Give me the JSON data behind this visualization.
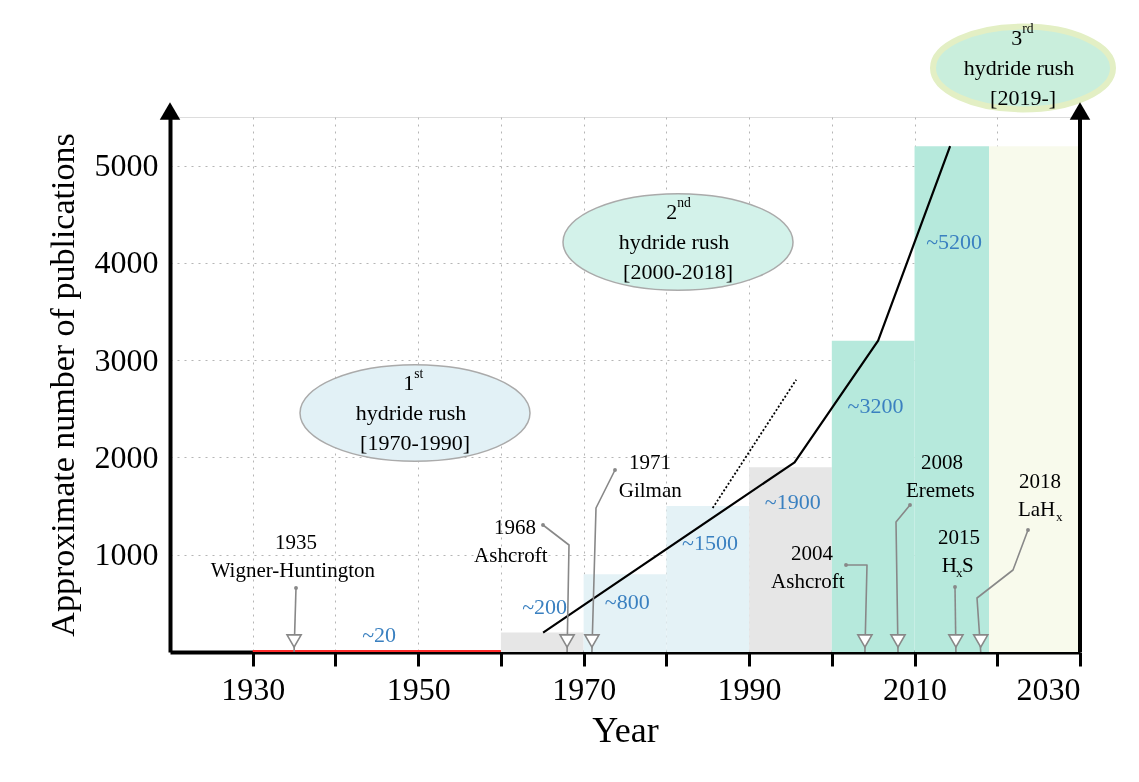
{
  "chart_data": {
    "type": "histogram",
    "xlabel": "Year",
    "ylabel": "Approximate number of publications",
    "bins": [
      1930,
      1960,
      1970,
      1980,
      1990,
      2000,
      2010,
      2019,
      2030
    ],
    "values": [
      20,
      200,
      800,
      1500,
      1900,
      3200,
      5200,
      5200
    ],
    "colors": [
      "#ff2a2a",
      "#e6e6e6",
      "#e4f2f6",
      "#e4f2f6",
      "#e6e6e6",
      "#b6e9dc",
      "#b6e9dc",
      "#f8faec"
    ],
    "value_labels": [
      "~20",
      "~200",
      "~800",
      "~1500",
      "~1900",
      "~3200",
      "~5200",
      null
    ],
    "series": [
      {
        "type": "line",
        "color": "#000000",
        "x": [
          1965.1,
          1995.5,
          2005.6,
          2014.3
        ],
        "values": [
          200,
          1950,
          3200,
          5200
        ]
      },
      {
        "type": "line",
        "color": "#000000",
        "line_style": "dotted",
        "x": [
          1985.6,
          1995.7
        ],
        "values": [
          1480,
          2800
        ]
      }
    ],
    "xlim": [
      1920,
      2030
    ],
    "ylim": [
      0,
      5500
    ],
    "xticks": [
      1930,
      {
        "value": 1940,
        "label": null
      },
      1950,
      {
        "value": 1960,
        "label": null
      },
      1970,
      {
        "value": 1980,
        "label": null
      },
      1990,
      {
        "value": 2000,
        "label": null
      },
      2010,
      {
        "value": 2020,
        "label": null
      },
      2030
    ],
    "yticks": [
      1000,
      2000,
      3000,
      4000,
      5000
    ],
    "grid": true,
    "annotations": [
      "1$^{st}$\nhydride rush\n[1970-1990]",
      "2$^{nd}$\nhydride rush\n[2000-2018]",
      "3$^{rd}$\nhydride rush\n[2019-]",
      {
        "text": "1935\nWigner-Huntington",
        "x": 1935,
        "y": 0
      },
      {
        "text": "1968\nAshcroft",
        "x": 1968,
        "y": 0
      },
      {
        "text": "1971\nGilman",
        "x": 1971,
        "y": 0
      },
      {
        "text": "2004\nAshcroft",
        "x": 2004,
        "y": 0
      },
      {
        "text": "2008\nEremets",
        "x": 2008,
        "y": 0
      },
      {
        "text": "2015\nH$_{x}$S",
        "x": 2015,
        "y": 0
      },
      {
        "text": "2018\nLaH$_{x}$",
        "x": 2018,
        "y": 0
      }
    ]
  }
}
